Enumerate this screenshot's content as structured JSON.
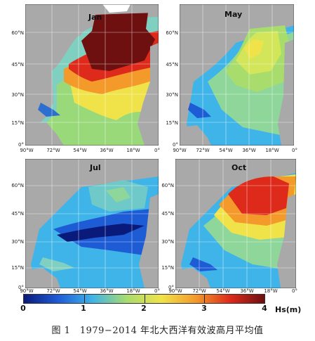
{
  "panels": [
    {
      "month": "Jan",
      "lat_ticks": [
        "60°N",
        "45°N",
        "30°N",
        "15°N",
        "0°"
      ],
      "lon_ticks": [
        "90°W",
        "72°W",
        "54°W",
        "36°W",
        "18°W",
        "0°"
      ]
    },
    {
      "month": "May",
      "lat_ticks": [
        "60°N",
        "45°N",
        "30°N",
        "15°N",
        "0°"
      ],
      "lon_ticks": [
        "90°W",
        "72°W",
        "54°W",
        "36°W",
        "18°W",
        "0°"
      ]
    },
    {
      "month": "Jul",
      "lat_ticks": [
        "60°N",
        "45°N",
        "30°N",
        "15°N",
        "0°"
      ],
      "lon_ticks": [
        "90°W",
        "72°W",
        "54°W",
        "36°W",
        "18°W",
        "0°"
      ]
    },
    {
      "month": "Oct",
      "lat_ticks": [
        "60°N",
        "45°N",
        "30°N",
        "15°N",
        "0°"
      ],
      "lon_ticks": [
        "90°W",
        "72°W",
        "54°W",
        "36°W",
        "18°W",
        "0°"
      ]
    }
  ],
  "colorbar": {
    "ticks": [
      "0",
      "1",
      "2",
      "3",
      "4"
    ],
    "unit": "Hs(m)",
    "colors": [
      "#0a1a7a",
      "#1e5cd6",
      "#3fb4e8",
      "#a8dc6c",
      "#f0e34a",
      "#f39a2a",
      "#dd2a1b",
      "#6e0f10"
    ]
  },
  "caption": "图 1　1979−2014 年北大西洋有效波高月平均值",
  "colors": {
    "land": "#a9a9a9",
    "grid": "#ffffff",
    "ice": "#ffffff"
  }
}
